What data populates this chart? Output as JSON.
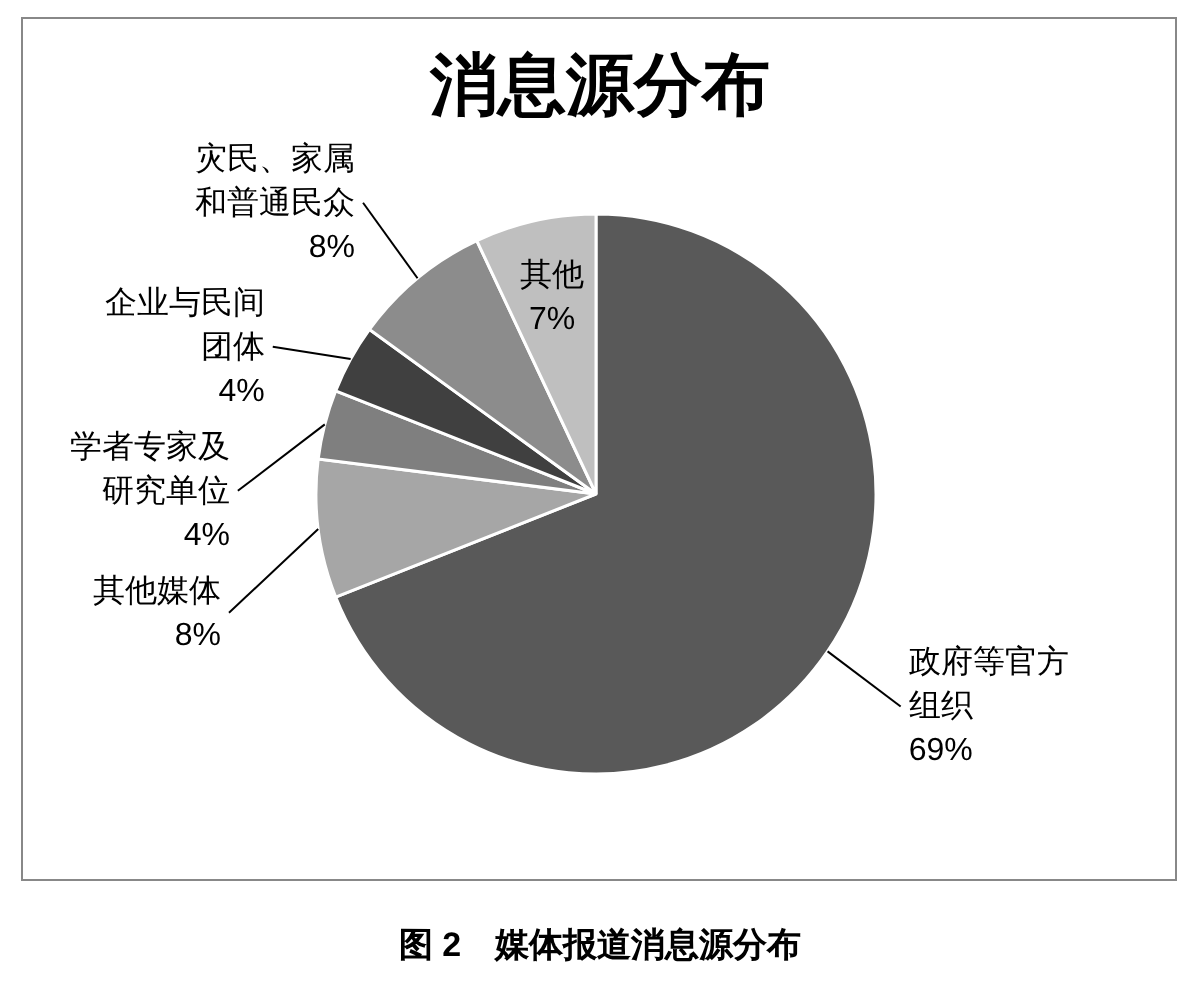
{
  "chart_data": {
    "type": "pie",
    "title": "消息源分布",
    "categories": [
      "政府等官方组织",
      "其他媒体",
      "学者专家及研究单位",
      "企业与民间团体",
      "灾民、家属和普通民众",
      "其他"
    ],
    "values": [
      69,
      8,
      4,
      4,
      8,
      7
    ],
    "colors": [
      "#595959",
      "#a6a6a6",
      "#7f7f7f",
      "#404040",
      "#8c8c8c",
      "#bfbfbf"
    ],
    "value_labels": [
      "69%",
      "8%",
      "4%",
      "4%",
      "8%",
      "7%"
    ],
    "annotations": [
      "图 2　媒体报道消息源分布"
    ]
  }
}
